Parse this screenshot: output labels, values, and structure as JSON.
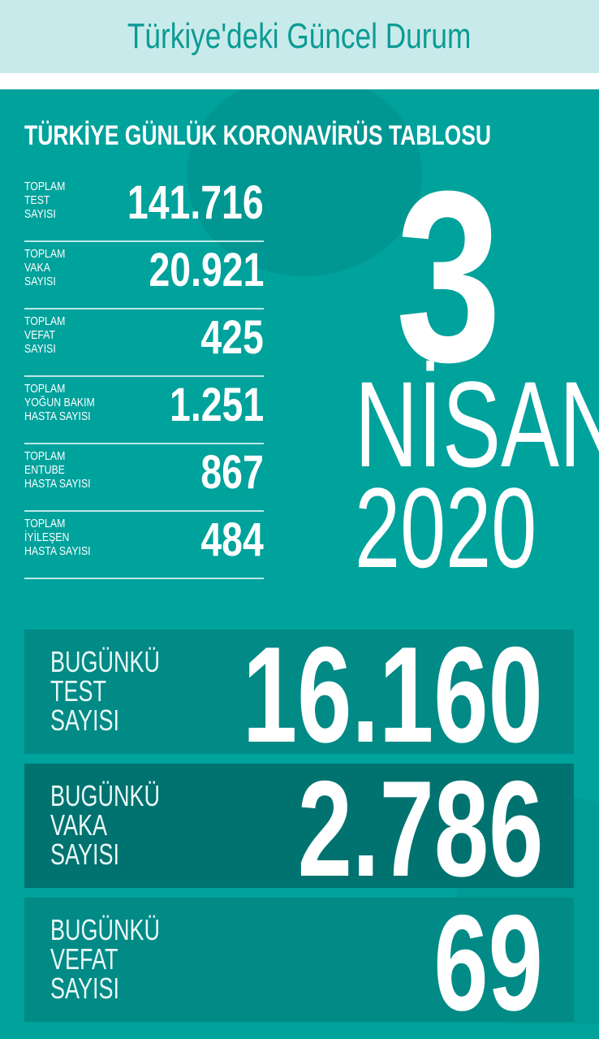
{
  "header": {
    "title": "Türkiye'deki Güncel Durum"
  },
  "heading": "TÜRKİYE GÜNLÜK KORONAVİRÜS TABLOSU",
  "totals": [
    {
      "label": "TOPLAM\nTEST\nSAYISI",
      "value": "141.716"
    },
    {
      "label": "TOPLAM\nVAKA\nSAYISI",
      "value": "20.921"
    },
    {
      "label": "TOPLAM\nVEFAT\nSAYISI",
      "value": "425"
    },
    {
      "label": "TOPLAM\nYOĞUN BAKIM\nHASTA SAYISI",
      "value": "1.251"
    },
    {
      "label": "TOPLAM\nENTUBE\nHASTA SAYISI",
      "value": "867"
    },
    {
      "label": "TOPLAM\nİYİLEŞEN\nHASTA SAYISI",
      "value": "484"
    }
  ],
  "date": {
    "day": "3",
    "month": "NİSAN",
    "year": "2020"
  },
  "today": [
    {
      "label": "BUGÜNKÜ\nTEST\nSAYISI",
      "value": "16.160",
      "color": "#018a86"
    },
    {
      "label": "BUGÜNKÜ\nVAKA\nSAYISI",
      "value": "2.786",
      "color": "#007370"
    },
    {
      "label": "BUGÜNKÜ\nVEFAT\nSAYISI",
      "value": "69",
      "color": "#018a86"
    }
  ],
  "colors": {
    "background": "#00a29c",
    "header_bg": "#c9eaeb",
    "title": "#0b9b94"
  }
}
